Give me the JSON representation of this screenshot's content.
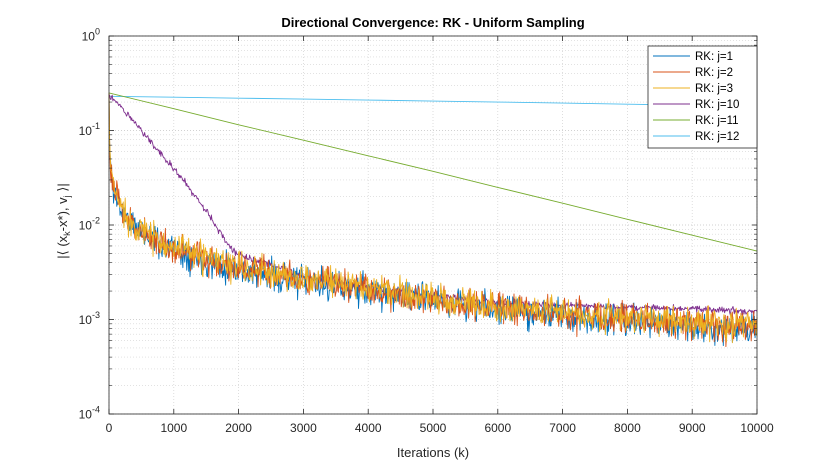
{
  "chart_data": {
    "type": "line",
    "title": "Directional Convergence: RK - Uniform Sampling",
    "xlabel": "Iterations (k)",
    "ylabel": "|⟨ (xₖ-x*), vⱼ ⟩|",
    "ylabel_parts": {
      "pre": "|⟨ (x",
      "sub1": "k",
      "mid": "-x*), v",
      "sub2": "j",
      "post": " ⟩|"
    },
    "xlim": [
      0,
      10000
    ],
    "ylim": [
      0.0001,
      1
    ],
    "yscale": "log",
    "grid": true,
    "minor_grid": true,
    "legend_position": "top-right",
    "x_ticks": [
      0,
      1000,
      2000,
      3000,
      4000,
      5000,
      6000,
      7000,
      8000,
      9000,
      10000
    ],
    "x_tick_labels": [
      "0",
      "1000",
      "2000",
      "3000",
      "4000",
      "5000",
      "6000",
      "7000",
      "8000",
      "9000",
      "10000"
    ],
    "y_ticks": [
      0.0001,
      0.001,
      0.01,
      0.1,
      1
    ],
    "y_tick_labels": [
      {
        "base": "10",
        "exp": "-4"
      },
      {
        "base": "10",
        "exp": "-3"
      },
      {
        "base": "10",
        "exp": "-2"
      },
      {
        "base": "10",
        "exp": "-1"
      },
      {
        "base": "10",
        "exp": "0"
      }
    ],
    "series": [
      {
        "name": "RK: j=1",
        "color": "#0072BD",
        "noisy": true,
        "noise_amplitude": 0.22,
        "seed": 11,
        "x": [
          0,
          10,
          30,
          60,
          100,
          200,
          300,
          500,
          700,
          1000,
          1500,
          2000,
          2500,
          3000,
          4000,
          5000,
          6000,
          7000,
          8000,
          9000,
          10000
        ],
        "values": [
          0.25,
          0.07,
          0.035,
          0.025,
          0.02,
          0.014,
          0.011,
          0.0085,
          0.007,
          0.0055,
          0.0042,
          0.0034,
          0.0029,
          0.0025,
          0.002,
          0.0016,
          0.0013,
          0.0011,
          0.00095,
          0.00085,
          0.0008
        ]
      },
      {
        "name": "RK: j=2",
        "color": "#D95319",
        "noisy": true,
        "noise_amplitude": 0.22,
        "seed": 23,
        "x": [
          0,
          10,
          30,
          60,
          100,
          200,
          300,
          500,
          700,
          1000,
          1500,
          2000,
          2500,
          3000,
          4000,
          5000,
          6000,
          7000,
          8000,
          9000,
          10000
        ],
        "values": [
          0.25,
          0.072,
          0.036,
          0.026,
          0.021,
          0.0145,
          0.0112,
          0.0087,
          0.0072,
          0.0056,
          0.0043,
          0.0035,
          0.003,
          0.0026,
          0.0021,
          0.00165,
          0.00135,
          0.00115,
          0.001,
          0.0009,
          0.00082
        ]
      },
      {
        "name": "RK: j=3",
        "color": "#EDB120",
        "noisy": true,
        "noise_amplitude": 0.22,
        "seed": 37,
        "x": [
          0,
          10,
          30,
          60,
          100,
          200,
          300,
          500,
          700,
          1000,
          1500,
          2000,
          2500,
          3000,
          4000,
          5000,
          6000,
          7000,
          8000,
          9000,
          10000
        ],
        "values": [
          0.25,
          0.075,
          0.037,
          0.027,
          0.022,
          0.015,
          0.0115,
          0.009,
          0.0074,
          0.0058,
          0.0045,
          0.0036,
          0.0031,
          0.0027,
          0.0022,
          0.0017,
          0.0014,
          0.0012,
          0.00105,
          0.00095,
          0.00088
        ]
      },
      {
        "name": "RK: j=10",
        "color": "#7E2F8E",
        "noisy": true,
        "noise_amplitude": 0.05,
        "seed": 51,
        "x": [
          0,
          250,
          500,
          1000,
          1500,
          1900,
          2000,
          2500,
          3000,
          3500,
          4000,
          5000,
          6000,
          7000,
          8000,
          9000,
          10000
        ],
        "values": [
          0.24,
          0.16,
          0.1,
          0.04,
          0.014,
          0.0055,
          0.0048,
          0.0038,
          0.0028,
          0.0025,
          0.0022,
          0.0018,
          0.0015,
          0.0014,
          0.00135,
          0.0013,
          0.0012
        ]
      },
      {
        "name": "RK: j=11",
        "color": "#77AC30",
        "noisy": false,
        "x": [
          0,
          1000,
          2000,
          3000,
          4000,
          5000,
          6000,
          7000,
          8000,
          9000,
          10000
        ],
        "values": [
          0.25,
          0.17,
          0.115,
          0.079,
          0.054,
          0.037,
          0.025,
          0.017,
          0.0115,
          0.0078,
          0.0053
        ]
      },
      {
        "name": "RK: j=12",
        "color": "#4DBEEE",
        "noisy": false,
        "x": [
          0,
          1000,
          2000,
          3000,
          4000,
          5000,
          6000,
          7000,
          8000,
          9000,
          10000
        ],
        "values": [
          0.23,
          0.225,
          0.22,
          0.215,
          0.21,
          0.205,
          0.2,
          0.195,
          0.19,
          0.185,
          0.18
        ]
      }
    ]
  }
}
